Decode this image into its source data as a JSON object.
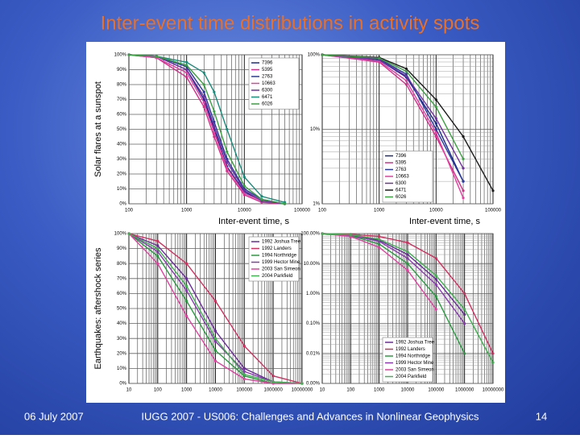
{
  "slide": {
    "title": "Inter-event time distributions in activity spots",
    "date": "06 July 2007",
    "footer": "IUGG 2007 - US006:  Challenges and Advances in Nonlinear Geophysics",
    "page": "14"
  },
  "chart_data": [
    {
      "type": "line",
      "ylabel": "Solar flares at a sunspot",
      "xlabel": "Inter-event time, s",
      "xlog": true,
      "ylog": false,
      "grid": true,
      "legend": "upper right",
      "x": [
        100,
        300,
        1000,
        2000,
        3000,
        5000,
        10000,
        20000,
        50000
      ],
      "xlim": [
        100,
        100000
      ],
      "xticks": [
        100,
        1000,
        10000,
        100000
      ],
      "ylim": [
        0,
        100
      ],
      "yticks": [
        {
          "value": 0,
          "label": "0%"
        },
        {
          "value": 10,
          "label": "10%"
        },
        {
          "value": 20,
          "label": "20%"
        },
        {
          "value": 30,
          "label": "30%"
        },
        {
          "value": 40,
          "label": "40%"
        },
        {
          "value": 50,
          "label": "50%"
        },
        {
          "value": 60,
          "label": "60%"
        },
        {
          "value": 70,
          "label": "70%"
        },
        {
          "value": 80,
          "label": "80%"
        },
        {
          "value": 90,
          "label": "90%"
        },
        {
          "value": 100,
          "label": "100%"
        }
      ],
      "series": [
        {
          "name": "7396",
          "color": "#1a2a8a",
          "values": [
            100,
            99,
            90,
            70,
            50,
            25,
            8,
            2,
            0
          ]
        },
        {
          "name": "5395",
          "color": "#d0308a",
          "values": [
            100,
            98,
            85,
            65,
            45,
            22,
            6,
            1,
            0
          ]
        },
        {
          "name": "2763",
          "color": "#2a3a9a",
          "values": [
            100,
            99,
            92,
            75,
            55,
            30,
            10,
            3,
            0
          ]
        },
        {
          "name": "10663",
          "color": "#e040a0",
          "values": [
            100,
            98,
            88,
            68,
            48,
            24,
            7,
            2,
            0
          ]
        },
        {
          "name": "6300",
          "color": "#7030a0",
          "values": [
            100,
            99,
            90,
            72,
            52,
            28,
            9,
            2,
            0
          ]
        },
        {
          "name": "6471",
          "color": "#1a8a7a",
          "values": [
            100,
            99,
            95,
            88,
            75,
            50,
            18,
            5,
            1
          ]
        },
        {
          "name": "6026",
          "color": "#3aa040",
          "values": [
            100,
            99,
            93,
            80,
            62,
            35,
            12,
            3,
            0
          ]
        }
      ]
    },
    {
      "type": "line",
      "xlabel": "Inter-event time, s",
      "xlog": true,
      "ylog": true,
      "grid": true,
      "legend": "lower center",
      "x": [
        100,
        1000,
        3000,
        10000,
        30000,
        100000
      ],
      "xlim": [
        100,
        100000
      ],
      "xticks": [
        100,
        1000,
        10000,
        100000
      ],
      "ylim": [
        1,
        100
      ],
      "yticks": [
        {
          "value": 1,
          "label": "1%"
        },
        {
          "value": 10,
          "label": "10%"
        },
        {
          "value": 100,
          "label": "100%"
        }
      ],
      "series": [
        {
          "name": "7396",
          "color": "#1a2a8a",
          "values": [
            100,
            85,
            50,
            12,
            2,
            null
          ]
        },
        {
          "name": "5395",
          "color": "#d0308a",
          "values": [
            100,
            80,
            40,
            8,
            1.5,
            null
          ]
        },
        {
          "name": "2763",
          "color": "#2a3a9a",
          "values": [
            100,
            88,
            55,
            10,
            2,
            null
          ]
        },
        {
          "name": "10663",
          "color": "#e040a0",
          "values": [
            100,
            82,
            45,
            9,
            1.2,
            null
          ]
        },
        {
          "name": "6300",
          "color": "#7030a0",
          "values": [
            100,
            86,
            52,
            14,
            3,
            null
          ]
        },
        {
          "name": "6471",
          "color": "#1a1a1a",
          "values": [
            100,
            92,
            65,
            25,
            8,
            1.5
          ]
        },
        {
          "name": "6026",
          "color": "#3aa040",
          "values": [
            100,
            90,
            60,
            20,
            4,
            null
          ]
        }
      ]
    },
    {
      "type": "line",
      "ylabel": "Earthquakes: aftershock series",
      "xlog": true,
      "ylog": false,
      "grid": true,
      "legend": "upper right",
      "x": [
        10,
        100,
        1000,
        10000,
        100000,
        1000000,
        10000000
      ],
      "xlim": [
        10,
        10000000
      ],
      "xticks": [
        10,
        100,
        1000,
        10000,
        100000,
        1000000,
        10000000
      ],
      "ylim": [
        0,
        100
      ],
      "yticks": [
        {
          "value": 0,
          "label": "0%"
        },
        {
          "value": 10,
          "label": "10%"
        },
        {
          "value": 20,
          "label": "20%"
        },
        {
          "value": 30,
          "label": "30%"
        },
        {
          "value": 40,
          "label": "40%"
        },
        {
          "value": 50,
          "label": "50%"
        },
        {
          "value": 60,
          "label": "60%"
        },
        {
          "value": 70,
          "label": "70%"
        },
        {
          "value": 80,
          "label": "80%"
        },
        {
          "value": 90,
          "label": "90%"
        },
        {
          "value": 100,
          "label": "100%"
        }
      ],
      "series": [
        {
          "name": "1992 Joshua Tree",
          "color": "#6a2a9a",
          "values": [
            100,
            92,
            70,
            35,
            10,
            1,
            0
          ]
        },
        {
          "name": "1992 Landers",
          "color": "#d03060",
          "values": [
            100,
            95,
            80,
            55,
            25,
            5,
            0
          ]
        },
        {
          "name": "1994 Northridge",
          "color": "#2a9a40",
          "values": [
            100,
            85,
            55,
            22,
            5,
            0,
            0
          ]
        },
        {
          "name": "1999 Hector Mine",
          "color": "#8a3ab0",
          "values": [
            100,
            88,
            62,
            28,
            8,
            1,
            0
          ]
        },
        {
          "name": "2003 San Simeon",
          "color": "#e040a0",
          "values": [
            100,
            80,
            45,
            15,
            3,
            0,
            0
          ]
        },
        {
          "name": "2004 Parkfield",
          "color": "#40b050",
          "values": [
            100,
            90,
            65,
            30,
            6,
            1,
            0
          ]
        }
      ]
    },
    {
      "type": "line",
      "xlog": true,
      "ylog": true,
      "grid": true,
      "legend": "lower center",
      "x": [
        10,
        100,
        1000,
        10000,
        100000,
        1000000,
        10000000
      ],
      "xlim": [
        10,
        10000000
      ],
      "xticks": [
        10,
        100,
        1000,
        10000,
        100000,
        1000000,
        10000000
      ],
      "ylim": [
        0.001,
        100
      ],
      "yticks": [
        {
          "value": 0.001,
          "label": "0.00%"
        },
        {
          "value": 0.01,
          "label": "0.01%"
        },
        {
          "value": 0.1,
          "label": "0.10%"
        },
        {
          "value": 1,
          "label": "1.00%"
        },
        {
          "value": 10,
          "label": "10.00%"
        },
        {
          "value": 100,
          "label": "100.00%"
        }
      ],
      "series": [
        {
          "name": "1992 Joshua Tree",
          "color": "#6a2a9a",
          "values": [
            100,
            90,
            60,
            20,
            3,
            0.2,
            null
          ]
        },
        {
          "name": "1992 Landers",
          "color": "#d03060",
          "values": [
            100,
            95,
            80,
            50,
            15,
            1,
            0.01
          ]
        },
        {
          "name": "1994 Northridge",
          "color": "#2a9a40",
          "values": [
            100,
            85,
            45,
            10,
            0.8,
            0.01,
            null
          ]
        },
        {
          "name": "1999 Hector Mine",
          "color": "#8a3ab0",
          "values": [
            100,
            88,
            55,
            15,
            2,
            0.1,
            null
          ]
        },
        {
          "name": "2003 San Simeon",
          "color": "#e040a0",
          "values": [
            100,
            80,
            35,
            6,
            0.3,
            null,
            null
          ]
        },
        {
          "name": "2004 Parkfield",
          "color": "#40b050",
          "values": [
            100,
            92,
            65,
            25,
            4,
            0.3,
            0.005
          ]
        }
      ]
    }
  ]
}
